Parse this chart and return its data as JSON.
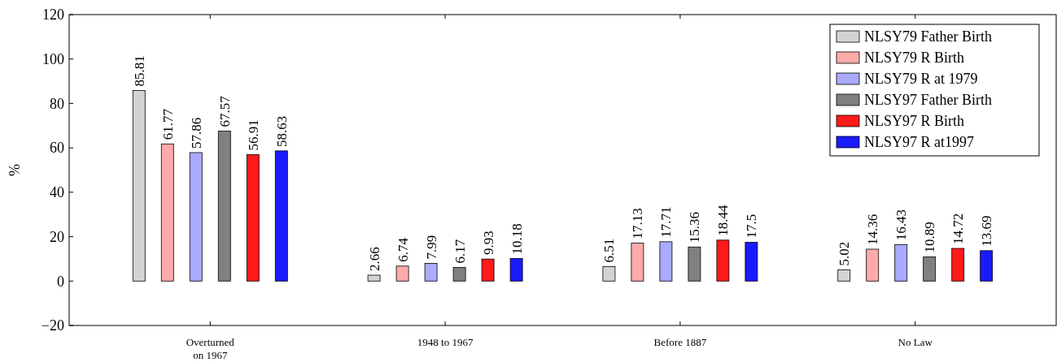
{
  "chart_data": {
    "type": "bar",
    "ylabel": "%",
    "categories": [
      "Overturned on 1967",
      "1948 to 1967",
      "Before 1887",
      "No Law"
    ],
    "series": [
      {
        "name": "NLSY79 Father Birth",
        "color": "#d3d3d3",
        "values": [
          85.81,
          2.66,
          6.51,
          5.02
        ]
      },
      {
        "name": "NLSY79 R Birth",
        "color": "#ffaaaa",
        "values": [
          61.77,
          6.74,
          17.13,
          14.36
        ]
      },
      {
        "name": "NLSY79 R at 1979",
        "color": "#aaaaff",
        "values": [
          57.86,
          7.99,
          17.71,
          16.43
        ]
      },
      {
        "name": "NLSY97 Father Birth",
        "color": "#808080",
        "values": [
          67.57,
          6.17,
          15.36,
          10.89
        ]
      },
      {
        "name": "NLSY97 R Birth",
        "color": "#ff1a1a",
        "values": [
          56.91,
          9.93,
          18.44,
          14.72
        ]
      },
      {
        "name": "NLSY97 R at1997",
        "color": "#1a1aff",
        "values": [
          58.63,
          10.18,
          17.5,
          13.69
        ]
      }
    ],
    "ylim": [
      -20,
      120
    ],
    "yticks": [
      {
        "value": -20,
        "label": "−20"
      },
      0,
      20,
      40,
      60,
      80,
      100,
      120
    ],
    "data_labels": true,
    "legend": "top right",
    "grid": false
  }
}
